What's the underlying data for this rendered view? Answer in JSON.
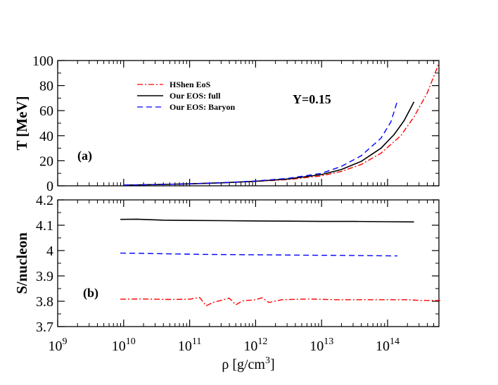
{
  "chart_data": [
    {
      "type": "line",
      "panel": "(a)",
      "annotation": "Y=0.15",
      "ylabel": "T [MeV]",
      "xlabel": "ρ [g/cm3]",
      "xscale": "log",
      "xlim": [
        1000000000.0,
        600000000000000.0
      ],
      "ylim": [
        0,
        100
      ],
      "ytick_labels": [
        "0",
        "20",
        "40",
        "60",
        "80",
        "100"
      ],
      "yticks": [
        0,
        20,
        40,
        60,
        80,
        100
      ],
      "legend_position": "top-left",
      "series": [
        {
          "name": "HShen EoS",
          "color": "#ff0000",
          "dash": "8,3,2,3",
          "x_log10": [
            10.0,
            10.5,
            11.0,
            11.5,
            12.0,
            12.5,
            13.0,
            13.3,
            13.6,
            13.9,
            14.2,
            14.4,
            14.6,
            14.78
          ],
          "values": [
            0.5,
            1.0,
            1.6,
            2.4,
            3.5,
            5.0,
            8.0,
            11.5,
            17.0,
            26.0,
            40.0,
            55.0,
            74.0,
            98.0
          ]
        },
        {
          "name": "Our EOS: full",
          "color": "#000000",
          "dash": "",
          "x_log10": [
            10.0,
            10.5,
            11.0,
            11.5,
            12.0,
            12.5,
            13.0,
            13.3,
            13.6,
            13.9,
            14.1,
            14.25,
            14.4
          ],
          "values": [
            0.5,
            1.0,
            1.6,
            2.4,
            3.6,
            5.5,
            9.0,
            13.0,
            19.5,
            30.0,
            41.0,
            52.0,
            67.0
          ]
        },
        {
          "name": "Our EOS: Baryon",
          "color": "#0000ff",
          "dash": "8,5",
          "x_log10": [
            10.0,
            10.5,
            11.0,
            11.5,
            12.0,
            12.5,
            13.0,
            13.3,
            13.6,
            13.9,
            14.05,
            14.15
          ],
          "values": [
            0.5,
            1.0,
            1.6,
            2.5,
            3.8,
            6.0,
            10.0,
            15.5,
            24.0,
            38.0,
            51.0,
            68.0
          ]
        }
      ]
    },
    {
      "type": "line",
      "panel": "(b)",
      "ylabel": "S/nucleon",
      "xlabel": "ρ [g/cm3]",
      "xscale": "log",
      "xlim": [
        1000000000.0,
        600000000000000.0
      ],
      "ylim": [
        3.7,
        4.2
      ],
      "ytick_labels": [
        "3.7",
        "3.8",
        "3.9",
        "4",
        "4.1",
        "4.2"
      ],
      "yticks": [
        3.7,
        3.8,
        3.9,
        4.0,
        4.1,
        4.2
      ],
      "xtick_exponents": [
        "9",
        "10",
        "11",
        "12",
        "13",
        "14"
      ],
      "series": [
        {
          "name": "HShen EoS",
          "color": "#ff0000",
          "dash": "8,3,2,3",
          "x_log10": [
            9.95,
            10.3,
            10.7,
            11.0,
            11.15,
            11.25,
            11.35,
            11.5,
            11.6,
            11.7,
            11.8,
            12.0,
            12.1,
            12.2,
            12.4,
            12.8,
            13.2,
            13.6,
            14.0,
            14.3,
            14.5,
            14.8
          ],
          "values": [
            3.808,
            3.809,
            3.807,
            3.808,
            3.815,
            3.782,
            3.795,
            3.805,
            3.812,
            3.786,
            3.801,
            3.806,
            3.814,
            3.795,
            3.806,
            3.809,
            3.806,
            3.806,
            3.806,
            3.806,
            3.803,
            3.803
          ]
        },
        {
          "name": "Our EOS: full",
          "color": "#000000",
          "dash": "",
          "x_log10": [
            9.95,
            10.2,
            10.6,
            11.0,
            11.5,
            12.0,
            12.5,
            13.0,
            13.5,
            14.0,
            14.4
          ],
          "values": [
            4.123,
            4.124,
            4.12,
            4.119,
            4.118,
            4.117,
            4.116,
            4.115,
            4.115,
            4.114,
            4.113
          ]
        },
        {
          "name": "Our EOS: Baryon",
          "color": "#0000ff",
          "dash": "8,5",
          "x_log10": [
            9.95,
            10.3,
            10.7,
            11.2,
            11.7,
            12.2,
            12.7,
            13.2,
            13.7,
            14.15
          ],
          "values": [
            3.99,
            3.989,
            3.987,
            3.985,
            3.984,
            3.983,
            3.982,
            3.981,
            3.98,
            3.979
          ]
        }
      ]
    }
  ],
  "labels": {
    "ylabel_a": "T [MeV]",
    "ylabel_b": "S/nucleon",
    "xlabel_main": "ρ [g/cm",
    "xlabel_sup": "3",
    "xlabel_close": "]",
    "panel_a": "(a)",
    "panel_b": "(b)",
    "annotation": "Y=0.15",
    "tick_base": "10",
    "legend": [
      "HShen EoS",
      "Our EOS: full",
      "Our EOS: Baryon"
    ]
  }
}
